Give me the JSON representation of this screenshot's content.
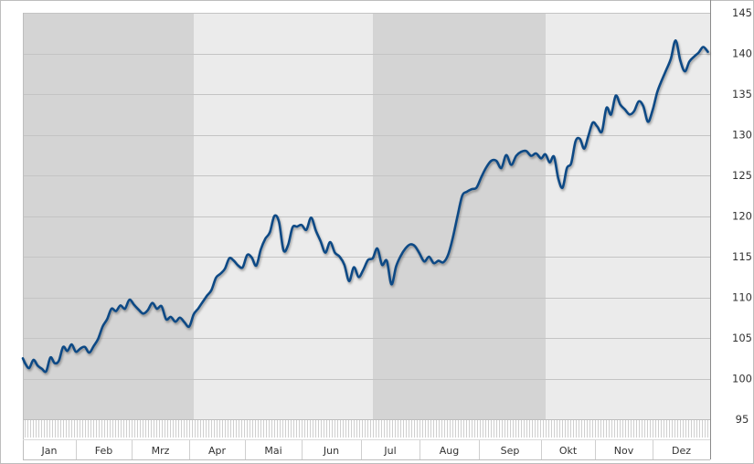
{
  "chart_data": {
    "type": "line",
    "title": "",
    "xlabel": "",
    "ylabel": "",
    "ylim": [
      95,
      145
    ],
    "y_ticks": [
      95,
      100,
      105,
      110,
      115,
      120,
      125,
      130,
      135,
      140,
      145
    ],
    "y_axis_side": "right",
    "grid": true,
    "legend": "none",
    "months": [
      "Jan",
      "Feb",
      "Mrz",
      "Apr",
      "Mai",
      "Jun",
      "Jul",
      "Aug",
      "Sep",
      "Okt",
      "Nov",
      "Dez"
    ],
    "shaded_bands": [
      {
        "from": "Jan",
        "to": "Mrz",
        "shade": "dark"
      },
      {
        "from": "Apr",
        "to": "Jun",
        "shade": "light"
      },
      {
        "from": "Jul",
        "to": "Sep",
        "shade": "dark"
      },
      {
        "from": "Okt",
        "to": "Dez",
        "shade": "light"
      }
    ],
    "colors": {
      "line": "#0d4a85",
      "band_dark": "#d4d4d4",
      "band_light": "#ebebeb",
      "grid": "#c4c4c4",
      "border": "#bdbdbd"
    },
    "series": [
      {
        "x": [
          0.0,
          0.05,
          0.12,
          0.2,
          0.28,
          0.36,
          0.44,
          0.52,
          0.6,
          0.68,
          0.76,
          0.84,
          0.92,
          1.0,
          1.08,
          1.16,
          1.24,
          1.32,
          1.4,
          1.48,
          1.56,
          1.64,
          1.72,
          1.8,
          1.88,
          1.96,
          2.04,
          2.12,
          2.2,
          2.28,
          2.36,
          2.44,
          2.52,
          2.6,
          2.68,
          2.76,
          2.84,
          2.92,
          3.0,
          3.08,
          3.16,
          3.24,
          3.32,
          3.4,
          3.48,
          3.56,
          3.64,
          3.72,
          3.8,
          3.88,
          3.96,
          4.04,
          4.12,
          4.2,
          4.28,
          4.36,
          4.44,
          4.52,
          4.6,
          4.68,
          4.76,
          4.84,
          4.92,
          5.0,
          5.08,
          5.16,
          5.24,
          5.32,
          5.4,
          5.48,
          5.56,
          5.64,
          5.72,
          5.8,
          5.88,
          5.96,
          6.04,
          6.12,
          6.2,
          6.28,
          6.36,
          6.44,
          6.52,
          6.6,
          6.68,
          6.76,
          6.84,
          6.92,
          7.0,
          7.08,
          7.16,
          7.24,
          7.32,
          7.4,
          7.48,
          7.56,
          7.64,
          7.72,
          7.8,
          7.88,
          7.96,
          8.04,
          8.12,
          8.2,
          8.28,
          8.36,
          8.44,
          8.52,
          8.6,
          8.68,
          8.76,
          8.84,
          8.92,
          9.0,
          9.08,
          9.16,
          9.24,
          9.32,
          9.4,
          9.48,
          9.56,
          9.64,
          9.72,
          9.8,
          9.88,
          9.96,
          10.04,
          10.12,
          10.2,
          10.28,
          10.36,
          10.44,
          10.52,
          10.6,
          10.68,
          10.76,
          10.84,
          10.92,
          11.0,
          11.08,
          11.16,
          11.24,
          11.32,
          11.4,
          11.48,
          11.56,
          11.64,
          11.72,
          11.8,
          11.88,
          11.96
        ],
        "values": [
          102.5,
          101.8,
          101.3,
          102.3,
          101.6,
          101.2,
          100.9,
          102.6,
          101.9,
          102.2,
          103.9,
          103.4,
          104.2,
          103.3,
          103.7,
          103.9,
          103.2,
          104.0,
          104.9,
          106.4,
          107.3,
          108.6,
          108.3,
          109.0,
          108.6,
          109.7,
          109.1,
          108.5,
          108.0,
          108.4,
          109.3,
          108.6,
          108.9,
          107.3,
          107.6,
          107.0,
          107.5,
          106.9,
          106.4,
          107.9,
          108.6,
          109.4,
          110.2,
          110.9,
          112.4,
          112.9,
          113.5,
          114.8,
          114.5,
          113.9,
          113.7,
          115.2,
          114.9,
          113.9,
          115.9,
          117.2,
          118.0,
          120.0,
          119.3,
          115.8,
          116.4,
          118.6,
          118.7,
          118.9,
          118.3,
          119.8,
          118.2,
          116.9,
          115.5,
          116.8,
          115.5,
          115.0,
          114.0,
          112.0,
          113.7,
          112.5,
          113.4,
          114.6,
          114.8,
          116.0,
          114.0,
          114.5,
          111.6,
          113.8,
          115.1,
          116.0,
          116.5,
          116.3,
          115.4,
          114.4,
          115.0,
          114.2,
          114.5,
          114.3,
          115.2,
          117.3,
          120.0,
          122.5,
          123.0,
          123.3,
          123.5,
          124.8,
          126.0,
          126.8,
          126.8,
          125.9,
          127.5,
          126.3,
          127.4,
          127.9,
          128.0,
          127.4,
          127.7,
          127.1,
          127.6,
          126.6,
          127.3,
          124.6,
          123.5,
          125.9,
          126.5,
          129.2,
          129.5,
          128.3,
          129.9,
          131.5,
          131.0,
          130.4,
          133.3,
          132.5,
          134.8,
          133.7,
          133.1,
          132.5,
          132.9,
          134.1,
          133.5,
          131.6,
          133.0,
          135.2,
          136.7,
          138.0,
          139.4,
          141.6,
          139.2,
          137.8,
          139.0,
          139.6,
          140.1,
          140.8,
          140.2
        ]
      }
    ]
  }
}
